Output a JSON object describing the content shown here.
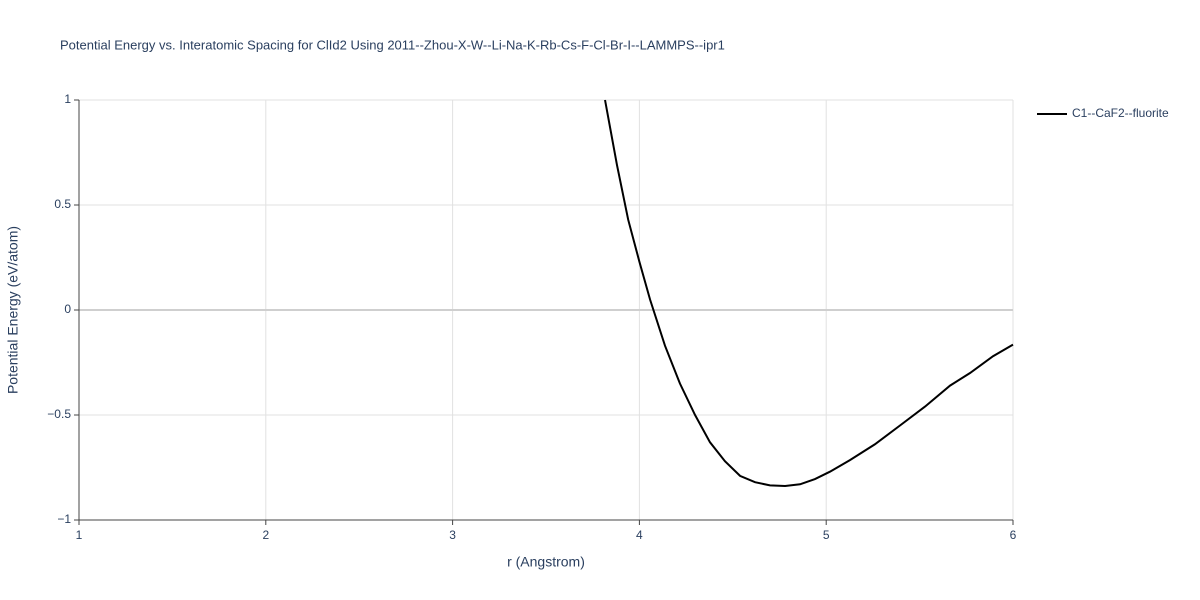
{
  "chart_data": {
    "type": "line",
    "title": "Potential Energy vs. Interatomic Spacing for ClId2 Using 2011--Zhou-X-W--Li-Na-K-Rb-Cs-F-Cl-Br-I--LAMMPS--ipr1",
    "xlabel": "r (Angstrom)",
    "ylabel": "Potential Energy (eV/atom)",
    "xlim": [
      1,
      6
    ],
    "ylim": [
      -1,
      1
    ],
    "xticks": [
      1,
      2,
      3,
      4,
      5,
      6
    ],
    "yticks": [
      {
        "value": -1,
        "label": "−1"
      },
      {
        "value": -0.5,
        "label": "−0.5"
      },
      0,
      0.5,
      1
    ],
    "grid": true,
    "legend": "top-right",
    "series": [
      {
        "name": "C1--CaF2--fluorite",
        "color": "#000000",
        "x": [
          3.816,
          3.88,
          3.94,
          4.0,
          4.057,
          4.137,
          4.217,
          4.298,
          4.378,
          4.458,
          4.539,
          4.619,
          4.699,
          4.78,
          4.86,
          4.94,
          5.02,
          5.127,
          5.26,
          5.395,
          5.529,
          5.663,
          5.77,
          5.893,
          6.0
        ],
        "y": [
          1.0,
          0.69,
          0.43,
          0.23,
          0.05,
          -0.17,
          -0.35,
          -0.5,
          -0.63,
          -0.72,
          -0.79,
          -0.82,
          -0.835,
          -0.838,
          -0.83,
          -0.805,
          -0.77,
          -0.715,
          -0.64,
          -0.55,
          -0.46,
          -0.36,
          -0.3,
          -0.22,
          -0.165
        ]
      }
    ]
  }
}
